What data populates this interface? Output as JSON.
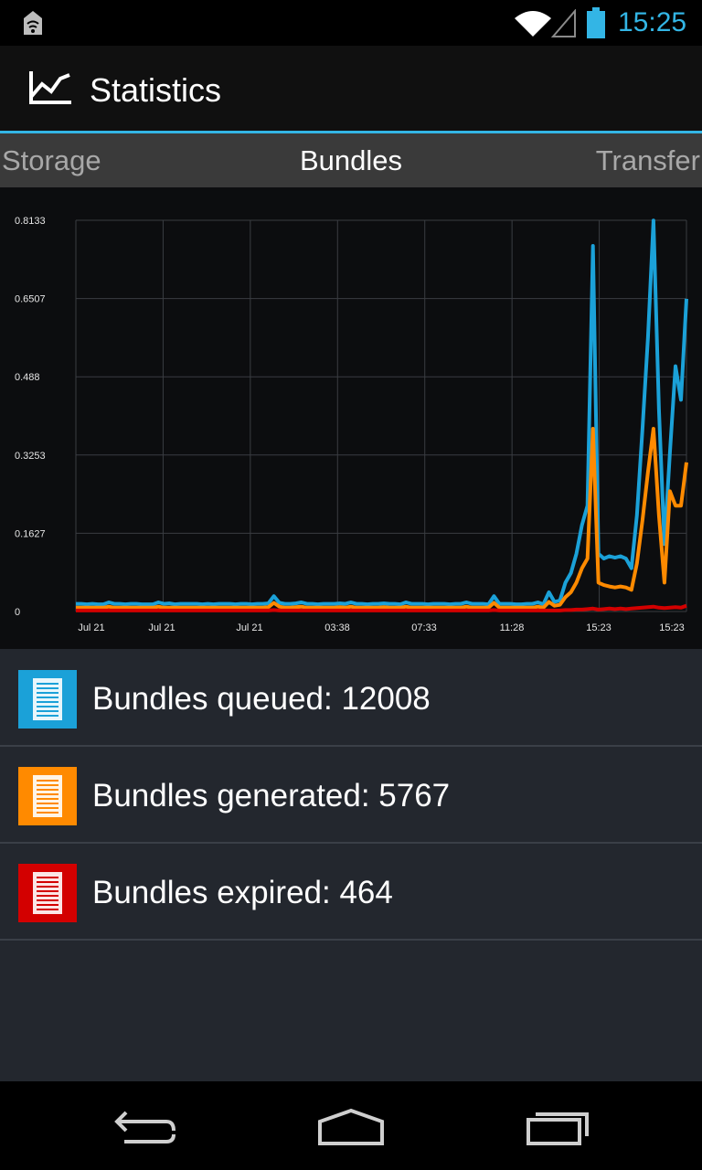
{
  "status_bar": {
    "time": "15:25",
    "icons": [
      "notification-icon",
      "wifi-icon",
      "signal-icon",
      "battery-icon"
    ]
  },
  "action_bar": {
    "title": "Statistics",
    "icon": "chart-line-icon"
  },
  "tabs": [
    {
      "label": "Storage",
      "selected": false
    },
    {
      "label": "Bundles",
      "selected": true
    },
    {
      "label": "Transfer",
      "selected": false
    }
  ],
  "colors": {
    "accent": "#33b5e5",
    "queued": "#1ba1d8",
    "generated": "#ff8a00",
    "expired": "#d30000"
  },
  "chart_data": {
    "type": "line",
    "y_ticks": [
      "0.8133",
      "0.6507",
      "0.488",
      "0.3253",
      "0.1627",
      "0"
    ],
    "x_ticks": [
      "Jul 21",
      "Jul 21",
      "Jul 21",
      "03:38",
      "07:33",
      "11:28",
      "15:23",
      "15:23"
    ],
    "ylim": [
      0,
      0.8133
    ],
    "grid": true,
    "series": [
      {
        "name": "Bundles queued",
        "color": "#1ba1d8",
        "values": [
          0.016,
          0.016,
          0.015,
          0.016,
          0.015,
          0.015,
          0.019,
          0.016,
          0.016,
          0.015,
          0.016,
          0.016,
          0.015,
          0.015,
          0.015,
          0.019,
          0.016,
          0.017,
          0.015,
          0.016,
          0.016,
          0.016,
          0.016,
          0.015,
          0.016,
          0.015,
          0.016,
          0.016,
          0.016,
          0.015,
          0.016,
          0.016,
          0.015,
          0.016,
          0.016,
          0.017,
          0.032,
          0.018,
          0.016,
          0.016,
          0.017,
          0.019,
          0.016,
          0.016,
          0.015,
          0.016,
          0.016,
          0.016,
          0.017,
          0.016,
          0.019,
          0.016,
          0.016,
          0.015,
          0.016,
          0.016,
          0.017,
          0.016,
          0.016,
          0.015,
          0.019,
          0.016,
          0.016,
          0.016,
          0.015,
          0.016,
          0.016,
          0.016,
          0.015,
          0.016,
          0.016,
          0.019,
          0.016,
          0.016,
          0.016,
          0.015,
          0.032,
          0.016,
          0.016,
          0.016,
          0.015,
          0.015,
          0.016,
          0.016,
          0.019,
          0.015,
          0.04,
          0.02,
          0.023,
          0.06,
          0.08,
          0.12,
          0.18,
          0.22,
          0.76,
          0.12,
          0.11,
          0.115,
          0.112,
          0.115,
          0.11,
          0.09,
          0.2,
          0.38,
          0.57,
          0.813,
          0.42,
          0.14,
          0.33,
          0.51,
          0.44,
          0.65
        ]
      },
      {
        "name": "Bundles generated",
        "color": "#ff8a00",
        "values": [
          0.008,
          0.008,
          0.008,
          0.008,
          0.008,
          0.008,
          0.01,
          0.008,
          0.008,
          0.008,
          0.008,
          0.008,
          0.008,
          0.008,
          0.008,
          0.01,
          0.008,
          0.008,
          0.008,
          0.008,
          0.008,
          0.008,
          0.008,
          0.008,
          0.008,
          0.008,
          0.008,
          0.008,
          0.008,
          0.008,
          0.008,
          0.008,
          0.008,
          0.008,
          0.008,
          0.009,
          0.018,
          0.01,
          0.008,
          0.008,
          0.009,
          0.01,
          0.008,
          0.008,
          0.008,
          0.008,
          0.008,
          0.008,
          0.009,
          0.008,
          0.01,
          0.008,
          0.008,
          0.008,
          0.008,
          0.008,
          0.009,
          0.008,
          0.008,
          0.008,
          0.01,
          0.008,
          0.008,
          0.008,
          0.008,
          0.008,
          0.008,
          0.008,
          0.008,
          0.008,
          0.008,
          0.01,
          0.008,
          0.008,
          0.008,
          0.008,
          0.018,
          0.008,
          0.008,
          0.008,
          0.008,
          0.008,
          0.008,
          0.008,
          0.01,
          0.008,
          0.02,
          0.012,
          0.014,
          0.03,
          0.04,
          0.06,
          0.09,
          0.11,
          0.38,
          0.06,
          0.055,
          0.052,
          0.05,
          0.052,
          0.05,
          0.045,
          0.1,
          0.19,
          0.29,
          0.38,
          0.2,
          0.06,
          0.25,
          0.22,
          0.22,
          0.31
        ]
      },
      {
        "name": "Bundles expired",
        "color": "#d30000",
        "values": [
          0.002,
          0.002,
          0.002,
          0.002,
          0.002,
          0.002,
          0.002,
          0.002,
          0.002,
          0.002,
          0.002,
          0.002,
          0.002,
          0.002,
          0.002,
          0.002,
          0.002,
          0.002,
          0.002,
          0.002,
          0.002,
          0.002,
          0.002,
          0.002,
          0.002,
          0.002,
          0.002,
          0.002,
          0.002,
          0.002,
          0.002,
          0.002,
          0.002,
          0.002,
          0.002,
          0.002,
          0.003,
          0.002,
          0.002,
          0.002,
          0.002,
          0.002,
          0.002,
          0.002,
          0.002,
          0.002,
          0.002,
          0.002,
          0.002,
          0.002,
          0.002,
          0.002,
          0.002,
          0.002,
          0.002,
          0.002,
          0.002,
          0.002,
          0.002,
          0.002,
          0.002,
          0.002,
          0.002,
          0.002,
          0.002,
          0.002,
          0.002,
          0.002,
          0.002,
          0.002,
          0.002,
          0.002,
          0.002,
          0.002,
          0.002,
          0.002,
          0.003,
          0.002,
          0.002,
          0.002,
          0.002,
          0.002,
          0.002,
          0.002,
          0.002,
          0.002,
          0.002,
          0.002,
          0.002,
          0.003,
          0.003,
          0.004,
          0.004,
          0.005,
          0.006,
          0.004,
          0.005,
          0.006,
          0.005,
          0.006,
          0.005,
          0.006,
          0.007,
          0.008,
          0.009,
          0.01,
          0.008,
          0.007,
          0.008,
          0.009,
          0.008,
          0.012
        ]
      }
    ]
  },
  "legend": [
    {
      "label": "Bundles queued: 12008",
      "color": "#1ba1d8",
      "icon": "document-icon"
    },
    {
      "label": "Bundles generated: 5767",
      "color": "#ff8a00",
      "icon": "document-icon"
    },
    {
      "label": "Bundles expired: 464",
      "color": "#d30000",
      "icon": "document-icon"
    }
  ],
  "nav_bar": {
    "buttons": [
      "back-icon",
      "home-icon",
      "recent-apps-icon"
    ]
  }
}
